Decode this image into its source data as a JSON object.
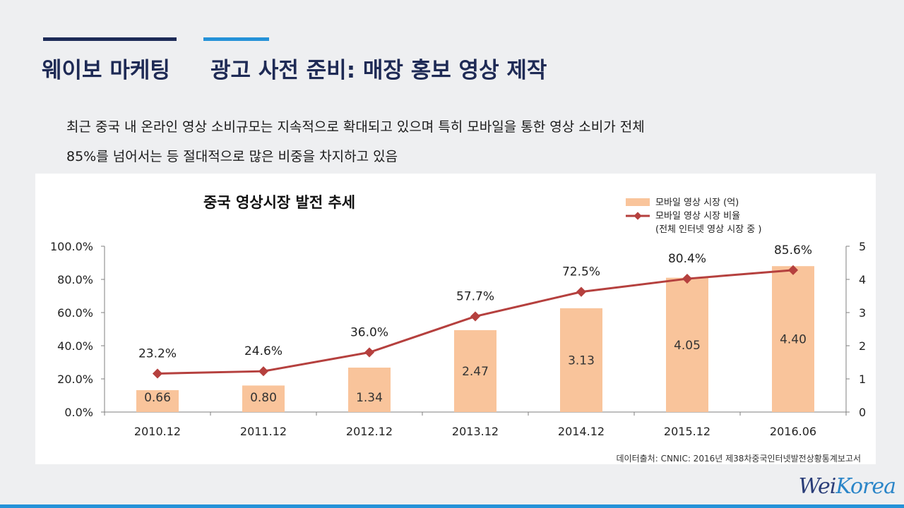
{
  "header": {
    "left_title": "웨이보 마케팅",
    "right_title": "광고 사전 준비: 매장 홍보 영상 제작"
  },
  "description": {
    "line1": "최근 중국 내 온라인 영상 소비규모는 지속적으로 확대되고 있으며 특히 모바일을 통한 영상 소비가 전체",
    "line2": "85%를 넘어서는 등 절대적으로 많은 비중을 차지하고 있음"
  },
  "chart_data": {
    "type": "bar",
    "title": "중국 영상시장 발전 추세",
    "categories": [
      "2010.12",
      "2011.12",
      "2012.12",
      "2013.12",
      "2014.12",
      "2015.12",
      "2016.06"
    ],
    "series": [
      {
        "name": "모바일 영상 시장 (억)",
        "type": "bar",
        "axis": "right",
        "values": [
          0.66,
          0.8,
          1.34,
          2.47,
          3.13,
          4.05,
          4.4
        ],
        "labels": [
          "0.66",
          "0.80",
          "1.34",
          "2.47",
          "3.13",
          "4.05",
          "4.40"
        ],
        "color": "#f9c49b"
      },
      {
        "name": "모바일 영상 시장 비율",
        "name_line2": "(전체 인터넷 영상 시장 중 )",
        "type": "line",
        "axis": "left",
        "values": [
          23.2,
          24.6,
          36.0,
          57.7,
          72.5,
          80.4,
          85.6
        ],
        "labels": [
          "23.2%",
          "24.6%",
          "36.0%",
          "57.7%",
          "72.5%",
          "80.4%",
          "85.6%"
        ],
        "color": "#b5403e"
      }
    ],
    "y_left": {
      "min": 0,
      "max": 100,
      "ticks": [
        "0.0%",
        "20.0%",
        "40.0%",
        "60.0%",
        "80.0%",
        "100.0%"
      ]
    },
    "y_right": {
      "min": 0,
      "max": 5,
      "ticks": [
        "0",
        "1",
        "2",
        "3",
        "4",
        "5"
      ]
    },
    "legend_position": "top-right",
    "source": "데이터출처: CNNIC: 2016년 제38차중국인터넷발전상황통계보고서"
  },
  "brand": {
    "main": "Wei",
    "accent": "Korea"
  }
}
